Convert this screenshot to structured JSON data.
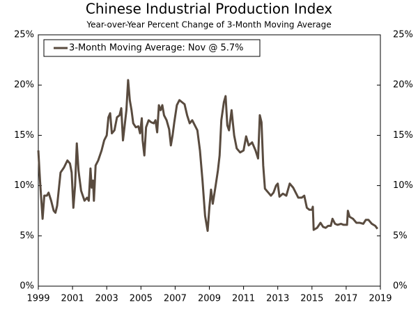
{
  "chart_data": {
    "type": "line",
    "title": "Chinese Industrial Production Index",
    "subtitle": "Year-over-Year Percent Change of 3-Month Moving Average",
    "x": [
      1999.0,
      1999.1,
      1999.25,
      1999.35,
      1999.5,
      1999.6,
      1999.75,
      1999.9,
      2000.0,
      2000.1,
      2000.3,
      2000.5,
      2000.7,
      2000.85,
      2000.95,
      2001.05,
      2001.15,
      2001.25,
      2001.35,
      2001.5,
      2001.7,
      2001.85,
      2001.95,
      2002.05,
      2002.12,
      2002.2,
      2002.25,
      2002.35,
      2002.5,
      2002.7,
      2002.85,
      2003.0,
      2003.1,
      2003.2,
      2003.3,
      2003.45,
      2003.6,
      2003.75,
      2003.85,
      2003.95,
      2004.05,
      2004.15,
      2004.25,
      2004.35,
      2004.45,
      2004.55,
      2004.7,
      2004.85,
      2004.95,
      2005.05,
      2005.1,
      2005.2,
      2005.3,
      2005.45,
      2005.6,
      2005.75,
      2005.85,
      2005.95,
      2006.05,
      2006.15,
      2006.25,
      2006.35,
      2006.5,
      2006.65,
      2006.75,
      2006.85,
      2006.95,
      2007.1,
      2007.25,
      2007.4,
      2007.55,
      2007.7,
      2007.85,
      2008.0,
      2008.15,
      2008.3,
      2008.45,
      2008.6,
      2008.75,
      2008.9,
      2009.0,
      2009.1,
      2009.2,
      2009.35,
      2009.5,
      2009.6,
      2009.7,
      2009.85,
      2009.95,
      2010.05,
      2010.15,
      2010.3,
      2010.45,
      2010.6,
      2010.8,
      2011.0,
      2011.15,
      2011.3,
      2011.5,
      2011.7,
      2011.85,
      2011.95,
      2012.05,
      2012.15,
      2012.25,
      2012.45,
      2012.6,
      2012.75,
      2012.9,
      2013.0,
      2013.1,
      2013.3,
      2013.5,
      2013.7,
      2013.9,
      2014.05,
      2014.2,
      2014.4,
      2014.55,
      2014.7,
      2014.85,
      2015.0,
      2015.05,
      2015.1,
      2015.3,
      2015.5,
      2015.65,
      2015.8,
      2015.95,
      2016.1,
      2016.2,
      2016.35,
      2016.5,
      2016.7,
      2016.85,
      2016.95,
      2017.05,
      2017.1,
      2017.2,
      2017.4,
      2017.6,
      2017.8,
      2018.0,
      2018.15,
      2018.3,
      2018.5,
      2018.7,
      2018.83
    ],
    "series": [
      {
        "name": "3-Month Moving Average: Nov @ 5.7%",
        "color": "#594b3f",
        "values": [
          13.5,
          10.5,
          6.7,
          9.0,
          9.0,
          9.3,
          8.5,
          7.5,
          7.3,
          8.0,
          11.3,
          11.8,
          12.5,
          12.2,
          11.3,
          7.8,
          10.0,
          14.2,
          11.5,
          9.5,
          8.5,
          8.8,
          8.5,
          11.7,
          9.8,
          10.5,
          8.5,
          12.0,
          12.5,
          13.5,
          14.5,
          15.0,
          16.8,
          17.2,
          15.2,
          15.5,
          16.8,
          17.0,
          17.7,
          14.5,
          16.0,
          17.5,
          20.5,
          18.5,
          17.5,
          16.2,
          15.8,
          15.9,
          15.2,
          16.7,
          14.5,
          13.0,
          15.8,
          16.5,
          16.3,
          16.2,
          16.5,
          15.3,
          18.0,
          17.5,
          18.0,
          17.0,
          16.5,
          15.6,
          14.0,
          15.0,
          16.3,
          18.0,
          18.5,
          18.3,
          18.1,
          17.0,
          16.2,
          16.5,
          16.0,
          15.5,
          13.5,
          10.5,
          7.0,
          5.5,
          7.8,
          9.6,
          8.2,
          9.8,
          11.5,
          13.0,
          16.5,
          18.3,
          18.9,
          16.0,
          15.5,
          17.5,
          15.0,
          13.7,
          13.3,
          13.5,
          14.9,
          14.0,
          14.3,
          13.5,
          12.7,
          17.0,
          16.3,
          12.0,
          9.7,
          9.3,
          9.0,
          9.3,
          10.0,
          10.2,
          8.9,
          9.2,
          9.0,
          10.2,
          9.8,
          9.3,
          8.8,
          8.8,
          9.0,
          7.8,
          7.6,
          7.6,
          7.9,
          5.6,
          5.8,
          6.3,
          5.9,
          5.8,
          6.0,
          6.0,
          6.7,
          6.2,
          6.1,
          6.2,
          6.1,
          6.1,
          6.1,
          7.5,
          6.9,
          6.7,
          6.3,
          6.3,
          6.2,
          6.6,
          6.6,
          6.2,
          6.0,
          5.7
        ]
      }
    ],
    "xlim": [
      1999,
      2019
    ],
    "xticks": [
      1999,
      2001,
      2003,
      2005,
      2007,
      2009,
      2011,
      2013,
      2015,
      2017,
      2019
    ],
    "ylim": [
      0,
      25
    ],
    "yticks": [
      {
        "value": 0,
        "label": "0%"
      },
      {
        "value": 5,
        "label": "5%"
      },
      {
        "value": 10,
        "label": "10%"
      },
      {
        "value": 15,
        "label": "15%"
      },
      {
        "value": 20,
        "label": "20%"
      },
      {
        "value": 25,
        "label": "25%"
      }
    ],
    "legend": "upper left"
  }
}
